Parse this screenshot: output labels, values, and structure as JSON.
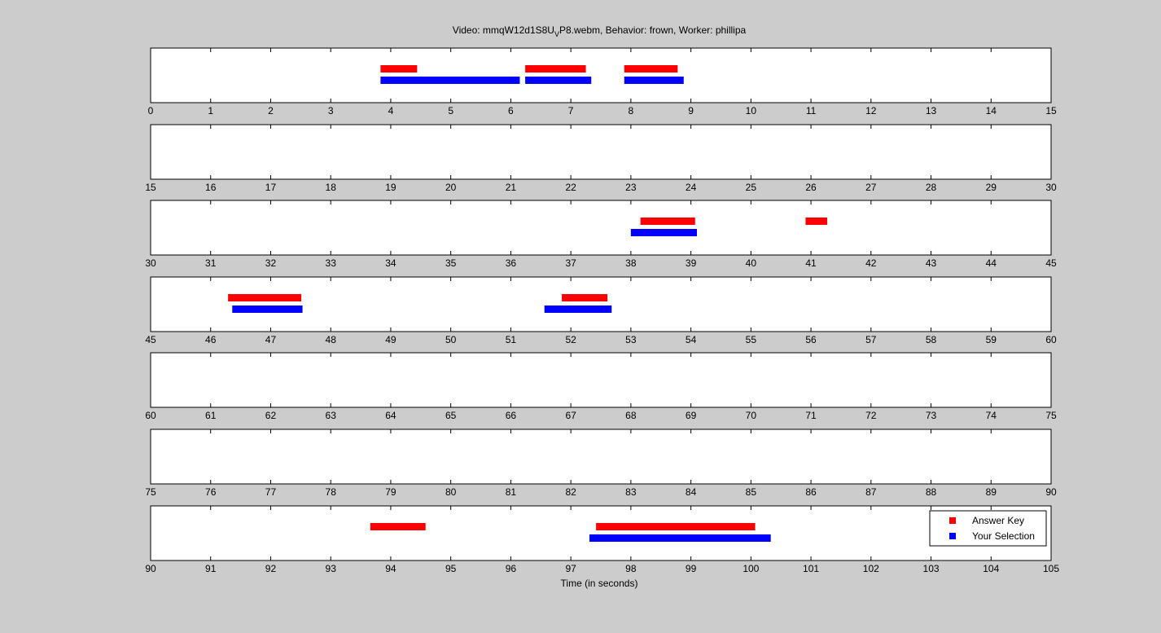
{
  "chart_data": {
    "type": "timeline",
    "title_parts": {
      "before_sub": "Video: mmqW12d1S8U",
      "sub": "V",
      "after_sub": "P8.webm,  Behavior: frown,  Worker: phillipa"
    },
    "xlabel": "Time (in seconds)",
    "ylabel": "",
    "legend": {
      "placement": "bottom-right",
      "entries": [
        {
          "name": "Answer Key",
          "color": "#ff0000"
        },
        {
          "name": "Your Selection",
          "color": "#0000ff"
        }
      ]
    },
    "colors": {
      "background": "#cccccc",
      "axes_background": "#ffffff",
      "answer_key": "#ff0000",
      "your_selection": "#0000ff"
    },
    "panels": [
      {
        "xlim": [
          0,
          15
        ],
        "ticks": [
          "0",
          "1",
          "2",
          "3",
          "4",
          "5",
          "6",
          "7",
          "8",
          "9",
          "10",
          "11",
          "12",
          "13",
          "14",
          "15"
        ]
      },
      {
        "xlim": [
          15,
          30
        ],
        "ticks": [
          "15",
          "16",
          "17",
          "18",
          "19",
          "20",
          "21",
          "22",
          "23",
          "24",
          "25",
          "26",
          "27",
          "28",
          "29",
          "30"
        ]
      },
      {
        "xlim": [
          30,
          45
        ],
        "ticks": [
          "30",
          "31",
          "32",
          "33",
          "34",
          "35",
          "36",
          "37",
          "38",
          "39",
          "40",
          "41",
          "42",
          "43",
          "44",
          "45"
        ]
      },
      {
        "xlim": [
          45,
          60
        ],
        "ticks": [
          "45",
          "46",
          "47",
          "48",
          "49",
          "50",
          "51",
          "52",
          "53",
          "54",
          "55",
          "56",
          "57",
          "58",
          "59",
          "60"
        ]
      },
      {
        "xlim": [
          60,
          75
        ],
        "ticks": [
          "60",
          "61",
          "62",
          "63",
          "64",
          "65",
          "66",
          "67",
          "68",
          "69",
          "70",
          "71",
          "72",
          "73",
          "74",
          "75"
        ]
      },
      {
        "xlim": [
          75,
          90
        ],
        "ticks": [
          "75",
          "76",
          "77",
          "78",
          "79",
          "80",
          "81",
          "82",
          "83",
          "84",
          "85",
          "86",
          "87",
          "88",
          "89",
          "90"
        ]
      },
      {
        "xlim": [
          90,
          105
        ],
        "ticks": [
          "90",
          "91",
          "92",
          "93",
          "94",
          "95",
          "96",
          "97",
          "98",
          "99",
          "100",
          "101",
          "102",
          "103",
          "104",
          "105"
        ]
      }
    ],
    "series": [
      {
        "name": "Answer Key",
        "intervals": [
          [
            3.83,
            4.44
          ],
          [
            6.24,
            7.25
          ],
          [
            7.89,
            8.78
          ],
          [
            38.16,
            39.07
          ],
          [
            40.91,
            41.27
          ],
          [
            46.29,
            47.51
          ],
          [
            51.85,
            52.61
          ],
          [
            93.66,
            94.58
          ],
          [
            97.42,
            100.07
          ]
        ]
      },
      {
        "name": "Your Selection",
        "intervals": [
          [
            3.83,
            6.15
          ],
          [
            6.24,
            7.34
          ],
          [
            7.89,
            8.88
          ],
          [
            38.0,
            39.1
          ],
          [
            46.36,
            47.53
          ],
          [
            51.56,
            52.68
          ],
          [
            97.31,
            100.33
          ]
        ]
      }
    ]
  }
}
